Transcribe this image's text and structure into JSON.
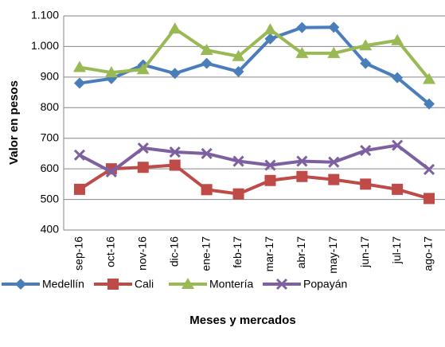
{
  "chart_data": {
    "type": "line",
    "y_label": "Valor en pesos",
    "x_label": "Meses y mercados",
    "categories": [
      "sep-16",
      "oct-16",
      "nov-16",
      "dic-16",
      "ene-17",
      "feb-17",
      "mar-17",
      "abr-17",
      "may-17",
      "jun-17",
      "jul-17",
      "ago-17"
    ],
    "series": [
      {
        "name": "Medellín",
        "color": "#4a7ebb",
        "marker": "diamond",
        "values": [
          880,
          895,
          940,
          912,
          945,
          918,
          1025,
          1062,
          1063,
          945,
          898,
          812
        ]
      },
      {
        "name": "Cali",
        "color": "#be4b48",
        "marker": "square",
        "values": [
          533,
          600,
          605,
          612,
          532,
          518,
          562,
          575,
          565,
          550,
          533,
          503
        ]
      },
      {
        "name": "Montería",
        "color": "#98b954",
        "marker": "triangle",
        "values": [
          932,
          915,
          925,
          1058,
          988,
          968,
          1055,
          978,
          978,
          1003,
          1020,
          893
        ]
      },
      {
        "name": "Popayán",
        "color": "#7d60a0",
        "marker": "x",
        "values": [
          645,
          590,
          668,
          655,
          650,
          625,
          612,
          625,
          622,
          660,
          677,
          598
        ]
      }
    ],
    "ylim": [
      400,
      1100
    ],
    "yticks": [
      400,
      500,
      600,
      700,
      800,
      900,
      {
        "value": 1000,
        "label": "1.000"
      },
      {
        "value": 1100,
        "label": "1.100"
      }
    ],
    "grid": true
  }
}
